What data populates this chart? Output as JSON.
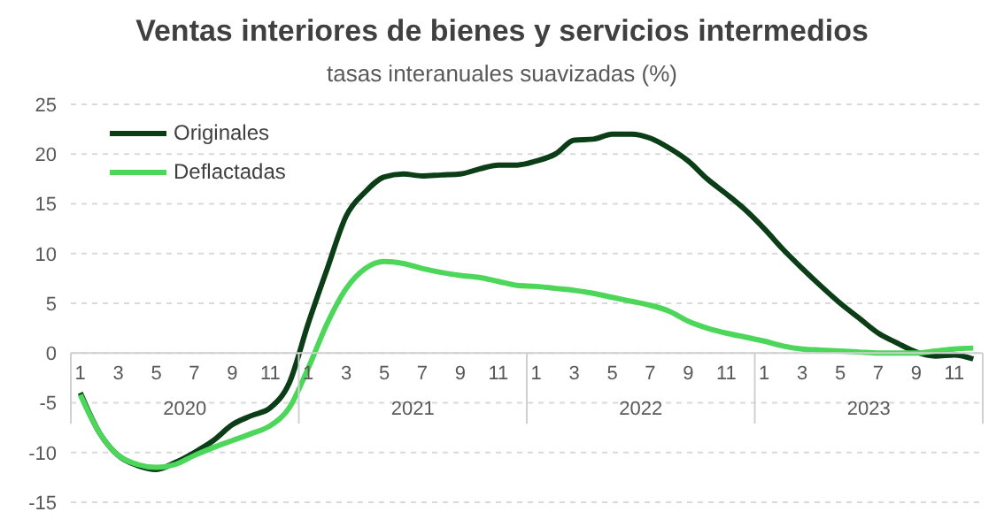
{
  "chart_data": {
    "type": "line",
    "title": "Ventas interiores de bienes y servicios intermedios",
    "subtitle": "tasas interanuales suavizadas (%)",
    "categories": [
      "1",
      null,
      "3",
      null,
      "5",
      null,
      "7",
      null,
      "9",
      null,
      "11",
      null,
      "1",
      null,
      "3",
      null,
      "5",
      null,
      "7",
      null,
      "9",
      null,
      "11",
      null,
      "1",
      null,
      "3",
      null,
      "5",
      null,
      "7",
      null,
      "9",
      null,
      "11",
      null,
      "1",
      null,
      "3",
      null,
      "5",
      null,
      "7",
      null,
      "9",
      null,
      "11",
      null
    ],
    "annotations": [
      "2020",
      "2021",
      "2022",
      "2023"
    ],
    "series": [
      {
        "name": "Originales",
        "color": "#0b3d17",
        "values": [
          -4,
          -8,
          -10.3,
          -11.3,
          -11.7,
          -11,
          -10,
          -8.8,
          -7.2,
          -6.3,
          -5.5,
          -3,
          3,
          8.5,
          13.8,
          16.2,
          17.7,
          18,
          17.8,
          17.9,
          18,
          18.5,
          18.9,
          18.9,
          19.3,
          20,
          21.4,
          21.5,
          22,
          22,
          21.6,
          20.6,
          19.3,
          17.5,
          16,
          14.4,
          12.5,
          10.4,
          8.5,
          6.7,
          5,
          3.5,
          2,
          1,
          0.1,
          -0.3,
          -0.2,
          -0.6
        ]
      },
      {
        "name": "Deflactadas",
        "color": "#4cd65a",
        "values": [
          -4.2,
          -8,
          -10.3,
          -11.2,
          -11.5,
          -11.2,
          -10.3,
          -9.5,
          -8.8,
          -8.1,
          -7.3,
          -5.5,
          -1.5,
          3,
          6.5,
          8.5,
          9.2,
          9,
          8.5,
          8.1,
          7.8,
          7.6,
          7.2,
          6.8,
          6.7,
          6.5,
          6.3,
          6,
          5.6,
          5.2,
          4.8,
          4.2,
          3.2,
          2.5,
          2,
          1.6,
          1.2,
          0.7,
          0.4,
          0.3,
          0.2,
          0.1,
          0,
          0,
          0,
          0.2,
          0.4,
          0.5
        ]
      }
    ],
    "ylim": [
      -15,
      25
    ],
    "yticks": [
      -15,
      -10,
      -5,
      0,
      5,
      10,
      15,
      20,
      25
    ],
    "grid": "y",
    "legend": "top left",
    "marker": "none",
    "line_style": "solid"
  }
}
